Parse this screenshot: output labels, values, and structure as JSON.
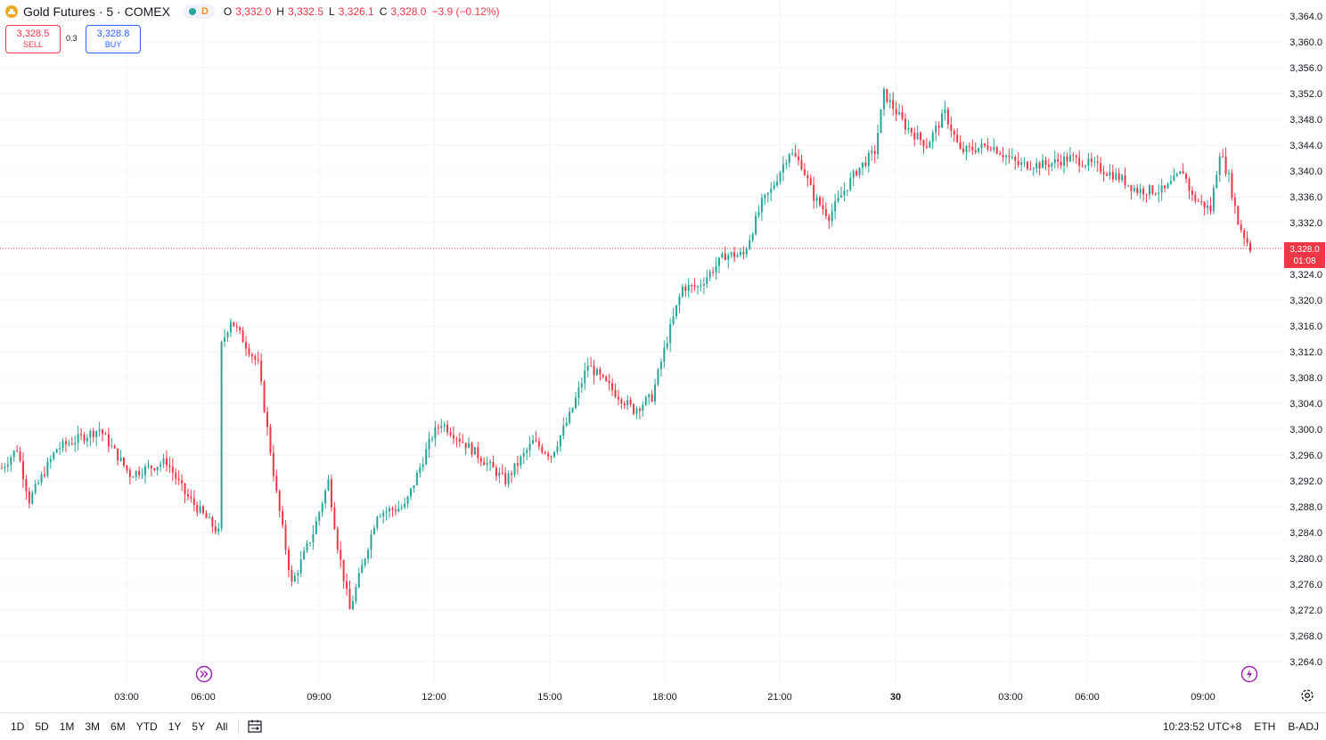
{
  "header": {
    "title": "Gold Futures · 5 · COMEX",
    "interval_badge": "D",
    "ohlc": [
      {
        "key": "O",
        "value": "3,332.0"
      },
      {
        "key": "H",
        "value": "3,332.5"
      },
      {
        "key": "L",
        "value": "3,326.1"
      },
      {
        "key": "C",
        "value": "3,328.0"
      },
      {
        "key": "",
        "value": "−3.9 (−0.12%)"
      }
    ]
  },
  "trade": {
    "sell_price": "3,328.5",
    "sell_label": "SELL",
    "spread": "0.3",
    "buy_price": "3,328.8",
    "buy_label": "BUY"
  },
  "last_price": {
    "price": "3,328.0",
    "countdown": "01:08",
    "value": 3328.0
  },
  "colors": {
    "up": "#26a69a",
    "down": "#f23645",
    "grid": "#f0f3fa",
    "text": "#131722",
    "event_icon": "#9c27b0"
  },
  "icons": {
    "symbol": "gold-coin-icon",
    "session_start": "fast-forward-circle-icon",
    "live_event": "lightning-circle-icon",
    "settings": "gear-icon",
    "compare": "calendar-range-icon"
  },
  "y_axis": {
    "ticks": [
      "3,364.0",
      "3,360.0",
      "3,356.0",
      "3,352.0",
      "3,348.0",
      "3,344.0",
      "3,340.0",
      "3,336.0",
      "3,332.0",
      "3,328.0",
      "3,324.0",
      "3,320.0",
      "3,316.0",
      "3,312.0",
      "3,308.0",
      "3,304.0",
      "3,300.0",
      "3,296.0",
      "3,292.0",
      "3,288.0",
      "3,284.0",
      "3,280.0",
      "3,276.0",
      "3,272.0",
      "3,268.0",
      "3,264.0"
    ]
  },
  "x_axis": {
    "ticks": [
      "03:00",
      "06:00",
      "09:00",
      "12:00",
      "15:00",
      "18:00",
      "21:00",
      "30",
      "03:00",
      "06:00",
      "09:00"
    ]
  },
  "bottom": {
    "ranges": [
      "1D",
      "5D",
      "1M",
      "3M",
      "6M",
      "YTD",
      "1Y",
      "5Y",
      "All"
    ],
    "time": "10:23:52 UTC+8",
    "session": "ETH",
    "adjust": "B-ADJ"
  },
  "chart_data": {
    "type": "candlestick",
    "interval": "5",
    "key_points": [
      {
        "t": "00:00",
        "price": 3294
      },
      {
        "t": "00:25",
        "price": 3297
      },
      {
        "t": "00:45",
        "price": 3289
      },
      {
        "t": "01:30",
        "price": 3297
      },
      {
        "t": "02:40",
        "price": 3300
      },
      {
        "t": "03:30",
        "price": 3293
      },
      {
        "t": "04:30",
        "price": 3295
      },
      {
        "t": "05:00",
        "price": 3290
      },
      {
        "t": "05:55",
        "price": 3284
      },
      {
        "t": "06:00",
        "price": 3313
      },
      {
        "t": "06:15",
        "price": 3317
      },
      {
        "t": "07:00",
        "price": 3310
      },
      {
        "t": "07:30",
        "price": 3290
      },
      {
        "t": "07:55",
        "price": 3276
      },
      {
        "t": "08:30",
        "price": 3284
      },
      {
        "t": "08:55",
        "price": 3292
      },
      {
        "t": "09:10",
        "price": 3282
      },
      {
        "t": "09:30",
        "price": 3272
      },
      {
        "t": "10:15",
        "price": 3287
      },
      {
        "t": "11:00",
        "price": 3288
      },
      {
        "t": "11:45",
        "price": 3299
      },
      {
        "t": "12:00",
        "price": 3301
      },
      {
        "t": "13:00",
        "price": 3296
      },
      {
        "t": "13:45",
        "price": 3292
      },
      {
        "t": "14:30",
        "price": 3298
      },
      {
        "t": "15:00",
        "price": 3296
      },
      {
        "t": "15:30",
        "price": 3302
      },
      {
        "t": "16:00",
        "price": 3310
      },
      {
        "t": "16:30",
        "price": 3307
      },
      {
        "t": "17:15",
        "price": 3303
      },
      {
        "t": "17:45",
        "price": 3305
      },
      {
        "t": "18:10",
        "price": 3314
      },
      {
        "t": "18:35",
        "price": 3322
      },
      {
        "t": "19:00",
        "price": 3322
      },
      {
        "t": "19:45",
        "price": 3327
      },
      {
        "t": "20:15",
        "price": 3327
      },
      {
        "t": "20:45",
        "price": 3335
      },
      {
        "t": "21:00",
        "price": 3337
      },
      {
        "t": "21:30",
        "price": 3343
      },
      {
        "t": "21:50",
        "price": 3341
      },
      {
        "t": "22:10",
        "price": 3336
      },
      {
        "t": "22:35",
        "price": 3333
      },
      {
        "t": "23:00",
        "price": 3337
      },
      {
        "t": "23:20",
        "price": 3340
      },
      {
        "t": "23:50",
        "price": 3343
      },
      {
        "t": "00:05",
        "price": 3352
      },
      {
        "t": "00:40",
        "price": 3347
      },
      {
        "t": "01:15",
        "price": 3344
      },
      {
        "t": "01:45",
        "price": 3349
      },
      {
        "t": "02:10",
        "price": 3343
      },
      {
        "t": "03:00",
        "price": 3344
      },
      {
        "t": "03:45",
        "price": 3341
      },
      {
        "t": "04:30",
        "price": 3341
      },
      {
        "t": "05:10",
        "price": 3342
      },
      {
        "t": "05:45",
        "price": 3341
      },
      {
        "t": "06:30",
        "price": 3339
      },
      {
        "t": "07:00",
        "price": 3337
      },
      {
        "t": "07:45",
        "price": 3337
      },
      {
        "t": "08:15",
        "price": 3340
      },
      {
        "t": "08:30",
        "price": 3336
      },
      {
        "t": "09:00",
        "price": 3334
      },
      {
        "t": "09:15",
        "price": 3343
      },
      {
        "t": "09:30",
        "price": 3339
      },
      {
        "t": "09:45",
        "price": 3332
      },
      {
        "t": "10:05",
        "price": 3328
      }
    ],
    "ylim": [
      3262,
      3366
    ]
  }
}
